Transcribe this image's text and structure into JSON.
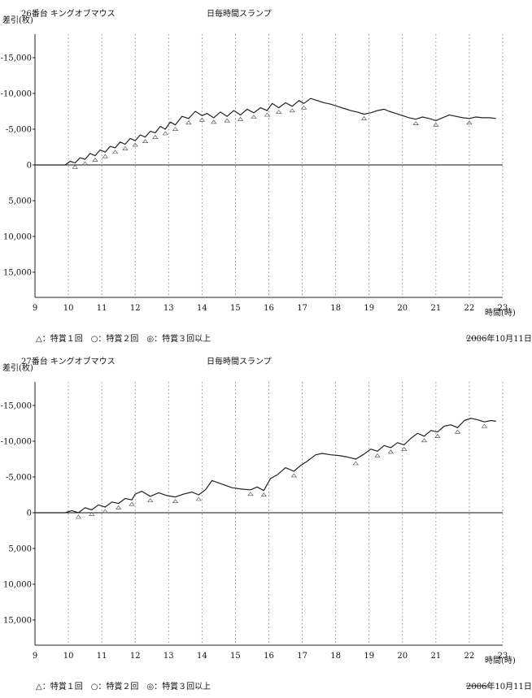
{
  "panels": [
    {
      "machine": "26番台 キングオブマウス",
      "title": "日毎時間スランプ",
      "ylabel": "差引(枚)",
      "xunit": "時間(時)",
      "legend": "△：特賞１回　○：特賞２回　◎：特賞３回以上",
      "date": "2006年10月11日",
      "chart_data": {
        "type": "line",
        "xlabel": "時間(時)",
        "ylabel": "差引(枚)",
        "xlim": [
          9,
          23
        ],
        "ylim": [
          -18000,
          18000
        ],
        "y_inverted": true,
        "x_ticks": [
          "9",
          "10",
          "11",
          "12",
          "13",
          "14",
          "15",
          "16",
          "17",
          "18",
          "19",
          "20",
          "21",
          "22",
          "23"
        ],
        "y_ticks": [
          "-15,000",
          "-10,000",
          "-5,000",
          "0",
          "5,000",
          "10,000",
          "15,000"
        ],
        "grid": "vertical dotted lines at each hour",
        "series": [
          {
            "name": "2006年10月11日",
            "x": [
              9.9,
              10.05,
              10.2,
              10.35,
              10.5,
              10.65,
              10.8,
              10.95,
              11.1,
              11.25,
              11.4,
              11.55,
              11.7,
              11.85,
              12.0,
              12.15,
              12.3,
              12.45,
              12.6,
              12.75,
              12.9,
              13.05,
              13.2,
              13.4,
              13.6,
              13.8,
              14.0,
              14.15,
              14.35,
              14.55,
              14.75,
              14.95,
              15.15,
              15.35,
              15.55,
              15.75,
              15.95,
              16.1,
              16.3,
              16.5,
              16.7,
              16.9,
              17.05,
              17.25,
              17.45,
              17.65,
              17.85,
              18.05,
              18.25,
              18.45,
              18.65,
              18.85,
              19.05,
              19.25,
              19.45,
              19.6,
              19.8,
              20.0,
              20.2,
              20.4,
              20.6,
              20.8,
              21.0,
              21.2,
              21.4,
              21.6,
              21.8,
              22.0,
              22.2,
              22.4,
              22.6,
              22.8
            ],
            "y": [
              0,
              -500,
              -300,
              -1000,
              -800,
              -1600,
              -1300,
              -2100,
              -1800,
              -2600,
              -2400,
              -3200,
              -2900,
              -3700,
              -3400,
              -4200,
              -3900,
              -4700,
              -4500,
              -5400,
              -5000,
              -6000,
              -5600,
              -6800,
              -6500,
              -7500,
              -6900,
              -7200,
              -6600,
              -7400,
              -6800,
              -7600,
              -7000,
              -7800,
              -7300,
              -8000,
              -7600,
              -8600,
              -8000,
              -8700,
              -8200,
              -9000,
              -8600,
              -9300,
              -9000,
              -8700,
              -8500,
              -8200,
              -7900,
              -7600,
              -7400,
              -7100,
              -7300,
              -7600,
              -7800,
              -7500,
              -7200,
              -6900,
              -6600,
              -6400,
              -6700,
              -6500,
              -6200,
              -6600,
              -7000,
              -6800,
              -6600,
              -6500,
              -6700,
              -6600,
              -6600,
              -6500
            ]
          }
        ]
      }
    },
    {
      "machine": "27番台 キングオブマウス",
      "title": "日毎時間スランプ",
      "ylabel": "差引(枚)",
      "xunit": "時間(時)",
      "legend": "△：特賞１回　○：特賞２回　◎：特賞３回以上",
      "date": "2006年10月11日",
      "chart_data": {
        "type": "line",
        "xlabel": "時間(時)",
        "ylabel": "差引(枚)",
        "xlim": [
          9,
          23
        ],
        "ylim": [
          -18000,
          18000
        ],
        "y_inverted": true,
        "x_ticks": [
          "9",
          "10",
          "11",
          "12",
          "13",
          "14",
          "15",
          "16",
          "17",
          "18",
          "19",
          "20",
          "21",
          "22",
          "23"
        ],
        "y_ticks": [
          "-15,000",
          "-10,000",
          "-5,000",
          "0",
          "5,000",
          "10,000",
          "15,000"
        ],
        "grid": "vertical dotted lines at each hour",
        "series": [
          {
            "name": "2006年10月11日",
            "x": [
              9.9,
              10.1,
              10.3,
              10.5,
              10.7,
              10.9,
              11.1,
              11.3,
              11.5,
              11.7,
              11.9,
              12.0,
              12.2,
              12.45,
              12.7,
              12.95,
              13.2,
              13.45,
              13.7,
              13.9,
              14.1,
              14.3,
              14.6,
              14.9,
              15.2,
              15.45,
              15.65,
              15.85,
              16.05,
              16.25,
              16.5,
              16.75,
              16.95,
              17.15,
              17.4,
              17.6,
              17.85,
              18.1,
              18.35,
              18.6,
              18.85,
              19.05,
              19.25,
              19.45,
              19.65,
              19.85,
              20.05,
              20.25,
              20.45,
              20.65,
              20.85,
              21.05,
              21.25,
              21.45,
              21.65,
              21.85,
              22.05,
              22.25,
              22.45,
              22.65,
              22.8
            ],
            "y": [
              0,
              -300,
              0,
              -700,
              -400,
              -1100,
              -800,
              -1500,
              -1300,
              -2000,
              -1800,
              -2600,
              -3000,
              -2300,
              -2800,
              -2400,
              -2200,
              -2600,
              -2900,
              -2500,
              -3200,
              -4500,
              -4000,
              -3500,
              -3300,
              -3200,
              -3600,
              -3100,
              -4800,
              -5300,
              -6300,
              -5800,
              -6600,
              -7200,
              -8100,
              -8300,
              -8100,
              -8000,
              -7800,
              -7500,
              -8200,
              -8900,
              -8600,
              -9400,
              -9100,
              -9800,
              -9500,
              -10400,
              -11100,
              -10700,
              -11500,
              -11300,
              -12100,
              -12300,
              -11900,
              -12900,
              -13200,
              -13000,
              -12700,
              -12900,
              -12800
            ]
          }
        ]
      }
    }
  ]
}
